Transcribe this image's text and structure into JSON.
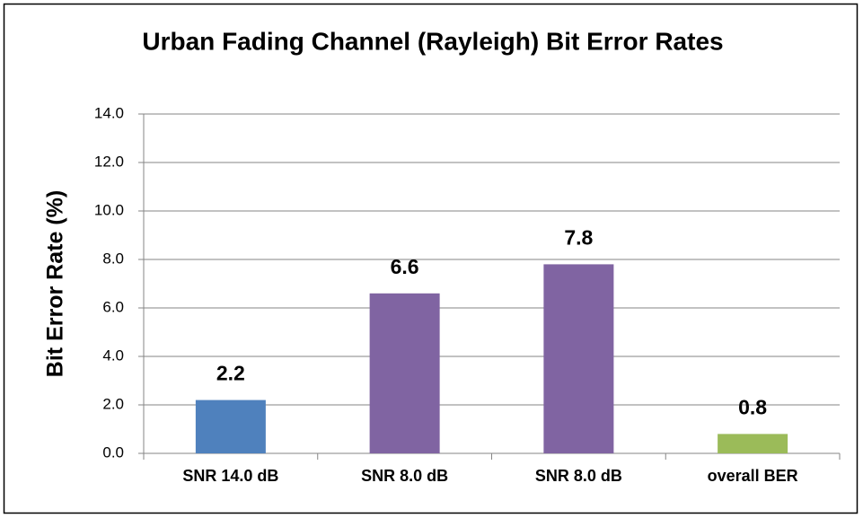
{
  "chart_data": {
    "type": "bar",
    "title": "Urban Fading Channel (Rayleigh) Bit Error Rates",
    "y_label": "Bit Error Rate (%)",
    "categories": [
      "SNR 14.0 dB",
      "SNR 8.0 dB",
      "SNR 8.0 dB",
      "overall BER"
    ],
    "values": [
      2.2,
      6.6,
      7.8,
      0.8
    ],
    "colors": [
      "#4f81bd",
      "#8064a2",
      "#8064a2",
      "#9bbb59"
    ],
    "ylim": [
      0,
      14
    ],
    "yticks": [
      {
        "value": 0,
        "label": "0.0"
      },
      {
        "value": 2,
        "label": "2.0"
      },
      {
        "value": 4,
        "label": "4.0"
      },
      {
        "value": 6,
        "label": "6.0"
      },
      {
        "value": 8,
        "label": "8.0"
      },
      {
        "value": 10,
        "label": "10.0"
      },
      {
        "value": 12,
        "label": "12.0"
      },
      {
        "value": 14,
        "label": "14.0"
      }
    ],
    "grid": true,
    "data_labels": true
  }
}
